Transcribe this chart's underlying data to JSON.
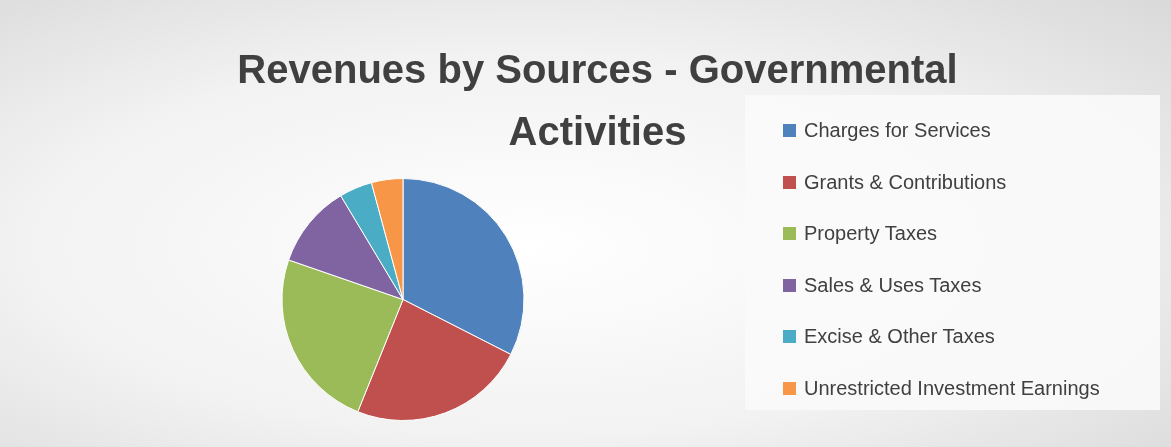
{
  "chart_data": {
    "type": "pie",
    "title": "Revenues by Sources - Governmental Activities",
    "categories": [
      "Charges for Services",
      "Grants & Contributions",
      "Property Taxes",
      "Sales & Uses Taxes",
      "Excise & Other Taxes",
      "Unrestricted Investment Earnings"
    ],
    "values": [
      32.5,
      23.6,
      24.2,
      11.1,
      4.4,
      4.2
    ],
    "colors": [
      "#4f81bd",
      "#c0504d",
      "#9bbb59",
      "#8064a2",
      "#4bacc6",
      "#f79646"
    ],
    "legend": "right"
  }
}
